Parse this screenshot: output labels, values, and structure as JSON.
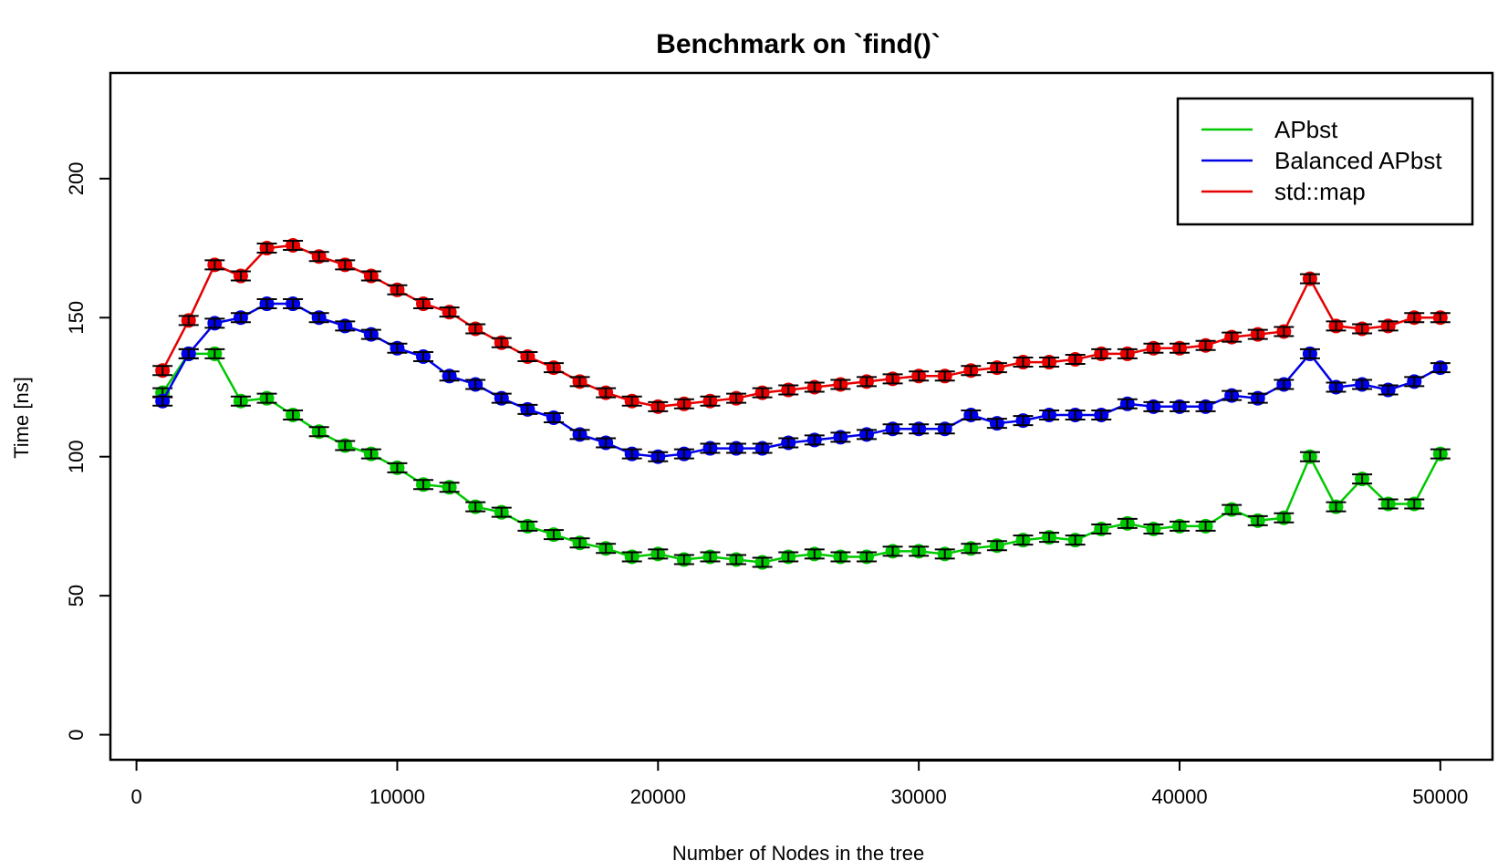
{
  "chart_data": {
    "type": "line",
    "title": "Benchmark on `find()`",
    "xlabel": "Number of Nodes in the tree",
    "ylabel": "Time [ns]",
    "xlim": [
      -1000,
      52000
    ],
    "ylim": [
      -9,
      238
    ],
    "xticks": [
      0,
      10000,
      20000,
      30000,
      40000,
      50000
    ],
    "yticks": [
      0,
      50,
      100,
      150,
      200
    ],
    "grid": false,
    "legend_position": "top-right",
    "x": [
      1000,
      2000,
      3000,
      4000,
      5000,
      6000,
      7000,
      8000,
      9000,
      10000,
      11000,
      12000,
      13000,
      14000,
      15000,
      16000,
      17000,
      18000,
      19000,
      20000,
      21000,
      22000,
      23000,
      24000,
      25000,
      26000,
      27000,
      28000,
      29000,
      30000,
      31000,
      32000,
      33000,
      34000,
      35000,
      36000,
      37000,
      38000,
      39000,
      40000,
      41000,
      42000,
      43000,
      44000,
      45000,
      46000,
      47000,
      48000,
      49000,
      50000
    ],
    "series": [
      {
        "name": "APbst",
        "color": "#00c800",
        "values": [
          123,
          137,
          137,
          120,
          121,
          115,
          109,
          104,
          101,
          96,
          90,
          89,
          82,
          80,
          75,
          72,
          69,
          67,
          64,
          65,
          63,
          64,
          63,
          62,
          64,
          65,
          64,
          64,
          66,
          66,
          65,
          67,
          68,
          70,
          71,
          70,
          74,
          76,
          74,
          75,
          75,
          81,
          77,
          78,
          100,
          82,
          92,
          83,
          83,
          101
        ]
      },
      {
        "name": "Balanced APbst",
        "color": "#0000e6",
        "values": [
          120,
          137,
          148,
          150,
          155,
          155,
          150,
          147,
          144,
          139,
          136,
          129,
          126,
          121,
          117,
          114,
          108,
          105,
          101,
          100,
          101,
          103,
          103,
          103,
          105,
          106,
          107,
          108,
          110,
          110,
          110,
          115,
          112,
          113,
          115,
          115,
          115,
          119,
          118,
          118,
          118,
          122,
          121,
          126,
          137,
          125,
          126,
          124,
          127,
          132
        ]
      },
      {
        "name": "std::map",
        "color": "#e60000",
        "values": [
          131,
          149,
          169,
          165,
          175,
          176,
          172,
          169,
          165,
          160,
          155,
          152,
          146,
          141,
          136,
          132,
          127,
          123,
          120,
          118,
          119,
          120,
          121,
          123,
          124,
          125,
          126,
          127,
          128,
          129,
          129,
          131,
          132,
          134,
          134,
          135,
          137,
          137,
          139,
          139,
          140,
          143,
          144,
          145,
          164,
          147,
          146,
          147,
          150,
          150
        ]
      }
    ]
  }
}
